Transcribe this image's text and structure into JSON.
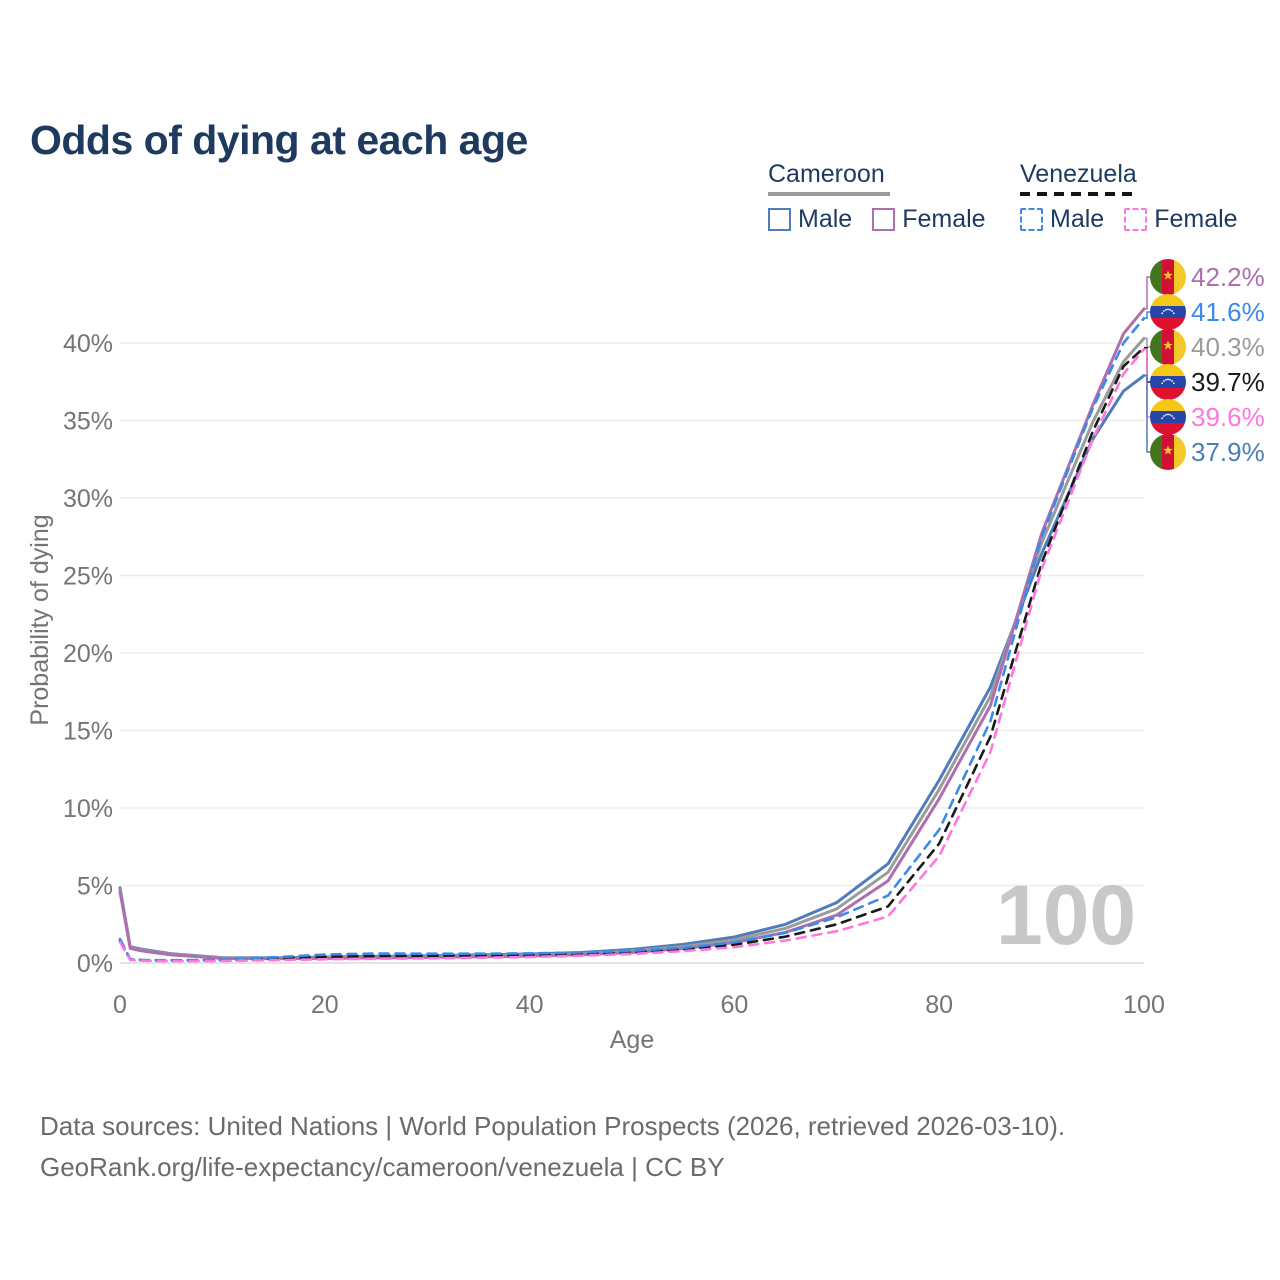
{
  "title": "Odds of dying at each age",
  "legend": {
    "groups": [
      {
        "country": "Cameroon",
        "underline_style": "solid",
        "underline_color": "#9a9a9a",
        "items": [
          {
            "label": "Male",
            "color": "#4d7dbb",
            "dash": "solid"
          },
          {
            "label": "Female",
            "color": "#ad6fad",
            "dash": "solid"
          }
        ]
      },
      {
        "country": "Venezuela",
        "underline_style": "dashed",
        "underline_color": "#141414",
        "items": [
          {
            "label": "Male",
            "color": "#3b8ae8",
            "dash": "dashed"
          },
          {
            "label": "Female",
            "color": "#ff77dd",
            "dash": "dashed"
          }
        ]
      }
    ]
  },
  "chart_data": {
    "type": "line",
    "title": "Odds of dying at each age",
    "xlabel": "Age",
    "ylabel": "Probability of dying",
    "xlim": [
      0,
      100
    ],
    "ylim": [
      0,
      45
    ],
    "grid": "horizontal",
    "x_ticks": [
      {
        "v": 0,
        "label": "0"
      },
      {
        "v": 20,
        "label": "20"
      },
      {
        "v": 40,
        "label": "40"
      },
      {
        "v": 60,
        "label": "60"
      },
      {
        "v": 80,
        "label": "80"
      },
      {
        "v": 100,
        "label": "100"
      }
    ],
    "y_ticks": [
      {
        "v": 0,
        "label": "0%"
      },
      {
        "v": 5,
        "label": "5%"
      },
      {
        "v": 10,
        "label": "10%"
      },
      {
        "v": 15,
        "label": "15%"
      },
      {
        "v": 20,
        "label": "20%"
      },
      {
        "v": 25,
        "label": "25%"
      },
      {
        "v": 30,
        "label": "30%"
      },
      {
        "v": 35,
        "label": "35%"
      },
      {
        "v": 40,
        "label": "40%"
      }
    ],
    "x": [
      0,
      1,
      2,
      3,
      5,
      10,
      15,
      20,
      25,
      30,
      35,
      40,
      45,
      50,
      55,
      60,
      65,
      70,
      75,
      80,
      85,
      90,
      95,
      98,
      100
    ],
    "series": [
      {
        "name": "Cameroon Male",
        "country": "Cameroon",
        "sex": "Male",
        "color": "#4d7dbb",
        "dash": "solid",
        "values": [
          4.85,
          1.05,
          0.9,
          0.8,
          0.6,
          0.35,
          0.33,
          0.38,
          0.43,
          0.47,
          0.52,
          0.58,
          0.68,
          0.88,
          1.2,
          1.68,
          2.5,
          3.9,
          6.4,
          11.8,
          17.8,
          26.4,
          33.8,
          36.9,
          37.9
        ]
      },
      {
        "name": "Cameroon Both sexes",
        "country": "Cameroon",
        "sex": "Both",
        "color": "#9b9b9b",
        "dash": "solid",
        "values": [
          4.72,
          1.0,
          0.85,
          0.75,
          0.56,
          0.33,
          0.3,
          0.34,
          0.38,
          0.42,
          0.46,
          0.52,
          0.6,
          0.78,
          1.06,
          1.5,
          2.24,
          3.5,
          5.85,
          11.2,
          17.2,
          27.1,
          34.9,
          38.8,
          40.3
        ]
      },
      {
        "name": "Cameroon Female",
        "country": "Cameroon",
        "sex": "Female",
        "color": "#ad6fad",
        "dash": "solid",
        "values": [
          4.6,
          0.95,
          0.8,
          0.7,
          0.52,
          0.3,
          0.27,
          0.3,
          0.33,
          0.36,
          0.4,
          0.45,
          0.53,
          0.68,
          0.93,
          1.32,
          1.98,
          3.1,
          5.3,
          10.6,
          16.6,
          27.7,
          36.0,
          40.6,
          42.2
        ]
      },
      {
        "name": "Venezuela Both sexes",
        "country": "Venezuela",
        "sex": "Both",
        "color": "#1a1a1a",
        "dash": "dashed",
        "values": [
          1.45,
          0.23,
          0.18,
          0.16,
          0.15,
          0.17,
          0.28,
          0.4,
          0.45,
          0.46,
          0.48,
          0.51,
          0.58,
          0.69,
          0.88,
          1.18,
          1.7,
          2.5,
          3.65,
          7.7,
          14.6,
          25.8,
          34.3,
          38.5,
          39.7
        ]
      },
      {
        "name": "Venezuela Male",
        "country": "Venezuela",
        "sex": "Male",
        "color": "#3b8ae8",
        "dash": "dashed",
        "values": [
          1.55,
          0.25,
          0.2,
          0.19,
          0.18,
          0.2,
          0.37,
          0.55,
          0.61,
          0.6,
          0.6,
          0.62,
          0.68,
          0.79,
          0.98,
          1.33,
          1.95,
          2.95,
          4.35,
          8.6,
          15.6,
          27.5,
          35.8,
          40.0,
          41.6
        ]
      },
      {
        "name": "Venezuela Female",
        "country": "Venezuela",
        "sex": "Female",
        "color": "#ff77dd",
        "dash": "dashed",
        "values": [
          1.35,
          0.2,
          0.15,
          0.14,
          0.12,
          0.13,
          0.18,
          0.24,
          0.27,
          0.3,
          0.34,
          0.39,
          0.47,
          0.58,
          0.77,
          1.02,
          1.45,
          2.05,
          3.0,
          6.9,
          13.6,
          25.4,
          33.8,
          38.0,
          39.6
        ]
      }
    ]
  },
  "end_labels": [
    {
      "value": "42.2%",
      "series": "Cameroon Female",
      "flag": "cameroon",
      "color": "#ad6fad"
    },
    {
      "value": "41.6%",
      "series": "Venezuela Male",
      "flag": "venezuela",
      "color": "#3b8ae8"
    },
    {
      "value": "40.3%",
      "series": "Cameroon Both sexes",
      "flag": "cameroon",
      "color": "#9b9b9b"
    },
    {
      "value": "39.7%",
      "series": "Venezuela Both sexes",
      "flag": "venezuela",
      "color": "#1a1a1a"
    },
    {
      "value": "39.6%",
      "series": "Venezuela Female",
      "flag": "venezuela",
      "color": "#ff77dd"
    },
    {
      "value": "37.9%",
      "series": "Cameroon Male",
      "flag": "cameroon",
      "color": "#4d7dbb"
    }
  ],
  "watermark": "100",
  "footer": {
    "line1": "Data sources: United Nations | World Population Prospects (2026, retrieved 2026-03-10).",
    "line2": "GeoRank.org/life-expectancy/cameroon/venezuela | CC BY"
  }
}
